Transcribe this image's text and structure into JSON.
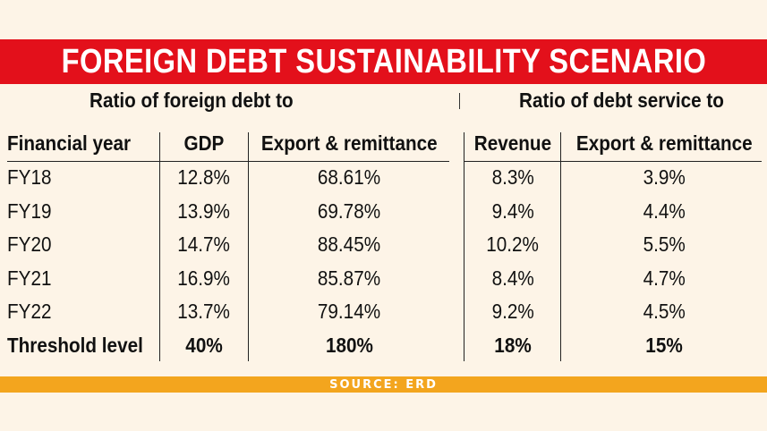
{
  "title": "FOREIGN DEBT SUSTAINABILITY SCENARIO",
  "groups": {
    "left": "Ratio of foreign debt to",
    "right": "Ratio of debt service to"
  },
  "headers": [
    "Financial year",
    "GDP",
    "Export & remittance",
    "Revenue",
    "Export & remittance"
  ],
  "rows": [
    [
      "FY18",
      "12.8%",
      "68.61%",
      "8.3%",
      "3.9%"
    ],
    [
      "FY19",
      "13.9%",
      "69.78%",
      "9.4%",
      "4.4%"
    ],
    [
      "FY20",
      "14.7%",
      "88.45%",
      "10.2%",
      "5.5%"
    ],
    [
      "FY21",
      "16.9%",
      "85.87%",
      "8.4%",
      "4.7%"
    ],
    [
      "FY22",
      "13.7%",
      "79.14%",
      "9.2%",
      "4.5%"
    ]
  ],
  "threshold": [
    "Threshold level",
    "40%",
    "180%",
    "18%",
    "15%"
  ],
  "source": "SOURCE: ERD",
  "colors": {
    "background": "#fdf4e7",
    "title_bar": "#e3101b",
    "source_bar": "#f3a51e"
  }
}
